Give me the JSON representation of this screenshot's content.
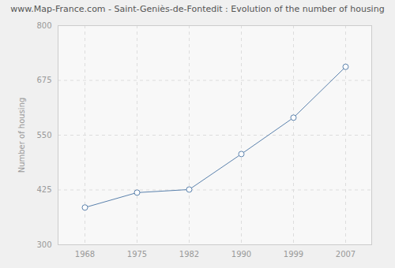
{
  "chart_data": {
    "type": "line",
    "title": "www.Map-France.com - Saint-Geniès-de-Fontedit : Evolution of the number of housing",
    "y_label": "Number of housing",
    "categories": [
      "1968",
      "1975",
      "1982",
      "1990",
      "1999",
      "2007"
    ],
    "values": [
      385,
      419,
      426,
      507,
      590,
      706
    ],
    "color": "#5b82ad",
    "marker": "circle",
    "ylim": [
      300,
      800
    ],
    "yticks": [
      300,
      425,
      550,
      675,
      800
    ],
    "grid": true
  }
}
